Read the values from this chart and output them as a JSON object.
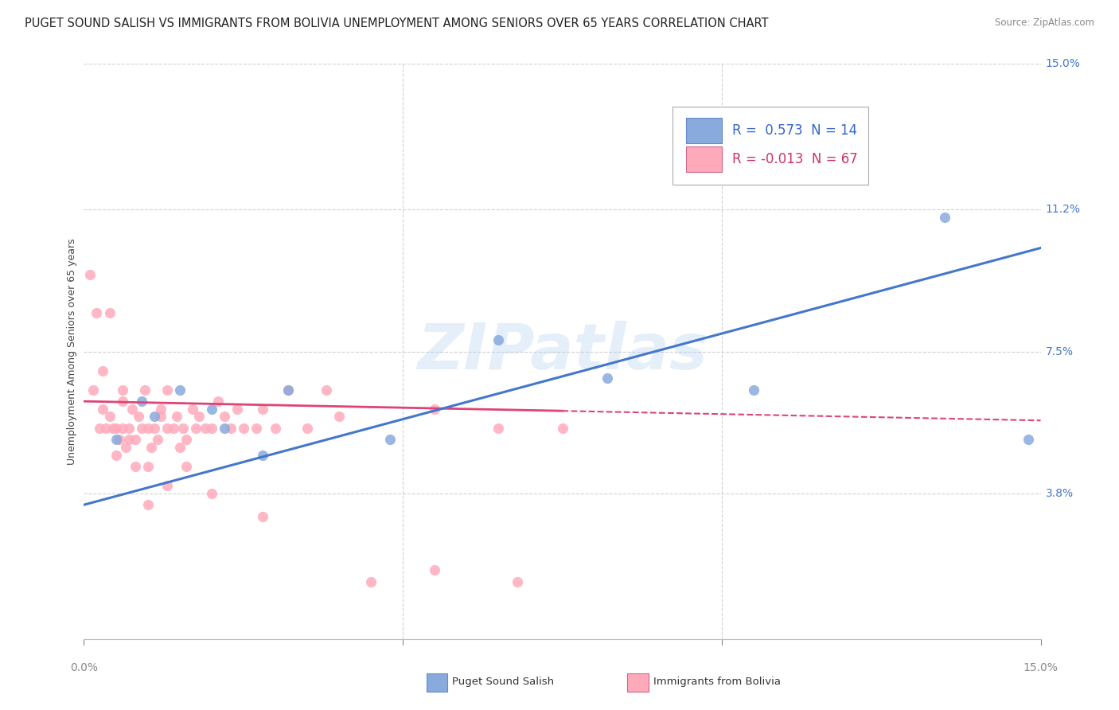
{
  "title": "PUGET SOUND SALISH VS IMMIGRANTS FROM BOLIVIA UNEMPLOYMENT AMONG SENIORS OVER 65 YEARS CORRELATION CHART",
  "source": "Source: ZipAtlas.com",
  "ylabel": "Unemployment Among Seniors over 65 years",
  "xlim": [
    0.0,
    15.0
  ],
  "ylim": [
    0.0,
    15.0
  ],
  "ytick_positions": [
    3.8,
    7.5,
    11.2,
    15.0
  ],
  "ytick_labels": [
    "3.8%",
    "7.5%",
    "11.2%",
    "15.0%"
  ],
  "grid_color": "#cccccc",
  "background_color": "#ffffff",
  "blue_color": "#88aadd",
  "blue_line_color": "#4477cc",
  "pink_color": "#ffaabb",
  "pink_line_color": "#dd4477",
  "blue_label": "Puget Sound Salish",
  "pink_label": "Immigrants from Bolivia",
  "legend_text_blue": "R =  0.573  N = 14",
  "legend_text_pink": "R = -0.013  N = 67",
  "blue_scatter_x": [
    0.5,
    0.9,
    1.1,
    1.5,
    2.0,
    2.2,
    2.8,
    3.2,
    4.8,
    6.5,
    8.2,
    10.5,
    13.5,
    14.8
  ],
  "blue_scatter_y": [
    5.2,
    6.2,
    5.8,
    6.5,
    6.0,
    5.5,
    4.8,
    6.5,
    5.2,
    7.8,
    6.8,
    6.5,
    11.0,
    5.2
  ],
  "pink_scatter_x": [
    0.1,
    0.15,
    0.2,
    0.25,
    0.3,
    0.3,
    0.35,
    0.4,
    0.45,
    0.5,
    0.5,
    0.55,
    0.6,
    0.6,
    0.65,
    0.7,
    0.7,
    0.75,
    0.8,
    0.85,
    0.9,
    0.95,
    1.0,
    1.0,
    1.05,
    1.1,
    1.15,
    1.2,
    1.2,
    1.3,
    1.3,
    1.4,
    1.45,
    1.5,
    1.55,
    1.6,
    1.7,
    1.75,
    1.8,
    1.9,
    2.0,
    2.1,
    2.2,
    2.3,
    2.4,
    2.5,
    2.7,
    2.8,
    3.0,
    3.2,
    3.5,
    3.8,
    4.0,
    5.5,
    6.5,
    7.5,
    0.4,
    0.6,
    0.8,
    1.0,
    1.3,
    1.6,
    2.0,
    2.8,
    4.5,
    5.5,
    6.8
  ],
  "pink_scatter_y": [
    9.5,
    6.5,
    8.5,
    5.5,
    6.0,
    7.0,
    5.5,
    5.8,
    5.5,
    5.5,
    4.8,
    5.2,
    5.5,
    6.2,
    5.0,
    5.5,
    5.2,
    6.0,
    5.2,
    5.8,
    5.5,
    6.5,
    5.5,
    4.5,
    5.0,
    5.5,
    5.2,
    6.0,
    5.8,
    5.5,
    6.5,
    5.5,
    5.8,
    5.0,
    5.5,
    5.2,
    6.0,
    5.5,
    5.8,
    5.5,
    5.5,
    6.2,
    5.8,
    5.5,
    6.0,
    5.5,
    5.5,
    6.0,
    5.5,
    6.5,
    5.5,
    6.5,
    5.8,
    6.0,
    5.5,
    5.5,
    8.5,
    6.5,
    4.5,
    3.5,
    4.0,
    4.5,
    3.8,
    3.2,
    1.5,
    1.8,
    1.5
  ],
  "pink_solid_x_end": 7.5,
  "watermark_text": "ZIPatlas",
  "title_fontsize": 10.5,
  "ylabel_fontsize": 9,
  "tick_fontsize": 10,
  "legend_fontsize": 12
}
